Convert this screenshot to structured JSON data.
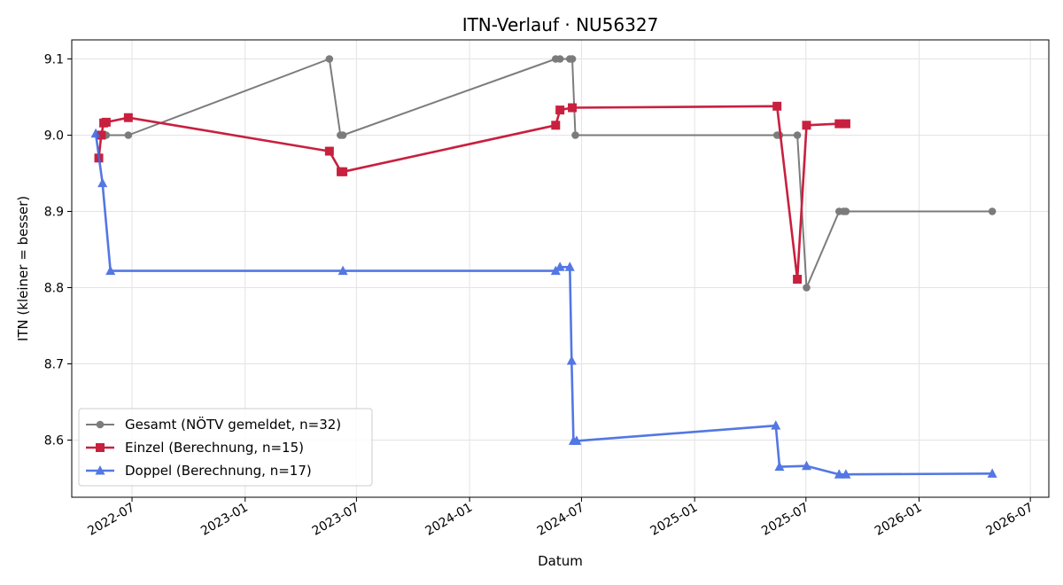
{
  "chart_data": {
    "type": "line",
    "title": "ITN-Verlauf · NU56327",
    "xlabel": "Datum",
    "ylabel": "ITN  (kleiner = besser)",
    "x_axis_type": "date",
    "xlim": [
      "2022-03-25",
      "2026-07-31"
    ],
    "ylim": [
      8.525,
      9.125
    ],
    "x_ticks": [
      "2022-07-01",
      "2023-01-01",
      "2023-07-01",
      "2024-01-01",
      "2024-07-01",
      "2025-01-01",
      "2025-07-01",
      "2026-01-01",
      "2026-07-01"
    ],
    "x_tick_labels": [
      "2022-07",
      "2023-01",
      "2023-07",
      "2024-01",
      "2024-07",
      "2025-01",
      "2025-07",
      "2026-01",
      "2026-07"
    ],
    "y_ticks": [
      8.6,
      8.7,
      8.8,
      8.9,
      9.0,
      9.1
    ],
    "y_tick_labels": [
      "8.6",
      "8.7",
      "8.8",
      "8.9",
      "9.0",
      "9.1"
    ],
    "grid": true,
    "legend_position": "lower-left",
    "series": [
      {
        "name": "Gesamt (NÖTV gemeldet, n=32)",
        "color": "#666666",
        "marker": "circle",
        "points": [
          {
            "x": "2022-05-10",
            "y": 9.0
          },
          {
            "x": "2022-05-13",
            "y": 9.0
          },
          {
            "x": "2022-05-17",
            "y": 9.0
          },
          {
            "x": "2022-05-20",
            "y": 9.0
          },
          {
            "x": "2022-06-25",
            "y": 9.0
          },
          {
            "x": "2023-05-18",
            "y": 9.1
          },
          {
            "x": "2023-06-05",
            "y": 9.0
          },
          {
            "x": "2023-06-09",
            "y": 9.0
          },
          {
            "x": "2024-05-20",
            "y": 9.1
          },
          {
            "x": "2024-05-27",
            "y": 9.1
          },
          {
            "x": "2024-06-12",
            "y": 9.1
          },
          {
            "x": "2024-06-16",
            "y": 9.1
          },
          {
            "x": "2024-06-21",
            "y": 9.0
          },
          {
            "x": "2025-05-15",
            "y": 9.0
          },
          {
            "x": "2025-05-19",
            "y": 9.0
          },
          {
            "x": "2025-06-17",
            "y": 9.0
          },
          {
            "x": "2025-07-02",
            "y": 8.8
          },
          {
            "x": "2025-08-24",
            "y": 8.9
          },
          {
            "x": "2025-08-31",
            "y": 8.9
          },
          {
            "x": "2025-09-04",
            "y": 8.9
          },
          {
            "x": "2026-04-30",
            "y": 8.9
          }
        ]
      },
      {
        "name": "Einzel (Berechnung, n=15)",
        "color": "#c8203f",
        "marker": "square",
        "points": [
          {
            "x": "2022-05-08",
            "y": 8.97
          },
          {
            "x": "2022-05-12",
            "y": 9.0
          },
          {
            "x": "2022-05-16",
            "y": 9.016
          },
          {
            "x": "2022-05-20",
            "y": 9.017
          },
          {
            "x": "2022-06-25",
            "y": 9.023
          },
          {
            "x": "2023-05-18",
            "y": 8.979
          },
          {
            "x": "2023-06-06",
            "y": 8.952
          },
          {
            "x": "2023-06-09",
            "y": 8.952
          },
          {
            "x": "2024-05-20",
            "y": 9.013
          },
          {
            "x": "2024-05-27",
            "y": 9.033
          },
          {
            "x": "2024-06-16",
            "y": 9.036
          },
          {
            "x": "2025-05-15",
            "y": 9.038
          },
          {
            "x": "2025-06-17",
            "y": 8.811
          },
          {
            "x": "2025-07-02",
            "y": 9.013
          },
          {
            "x": "2025-08-24",
            "y": 9.015
          },
          {
            "x": "2025-09-04",
            "y": 9.015
          }
        ]
      },
      {
        "name": "Doppel (Berechnung, n=17)",
        "color": "#4169e1",
        "marker": "triangle",
        "points": [
          {
            "x": "2022-05-03",
            "y": 9.002
          },
          {
            "x": "2022-05-14",
            "y": 8.937
          },
          {
            "x": "2022-05-27",
            "y": 8.822
          },
          {
            "x": "2023-06-09",
            "y": 8.822
          },
          {
            "x": "2024-05-20",
            "y": 8.822
          },
          {
            "x": "2024-05-27",
            "y": 8.827
          },
          {
            "x": "2024-06-12",
            "y": 8.827
          },
          {
            "x": "2024-06-15",
            "y": 8.704
          },
          {
            "x": "2024-06-18",
            "y": 8.599
          },
          {
            "x": "2024-06-23",
            "y": 8.599
          },
          {
            "x": "2025-05-13",
            "y": 8.619
          },
          {
            "x": "2025-05-19",
            "y": 8.565
          },
          {
            "x": "2025-07-02",
            "y": 8.566
          },
          {
            "x": "2025-08-24",
            "y": 8.555
          },
          {
            "x": "2025-09-04",
            "y": 8.555
          },
          {
            "x": "2026-04-30",
            "y": 8.556
          }
        ]
      }
    ]
  }
}
